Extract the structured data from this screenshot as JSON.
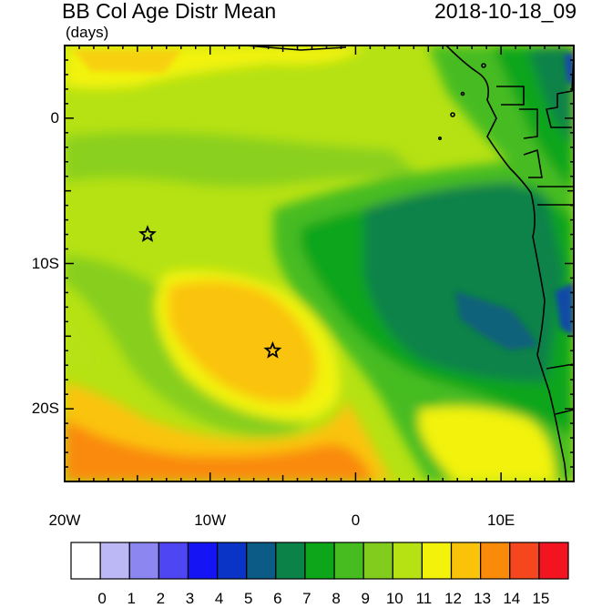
{
  "header": {
    "title": "BB Col Age Distr Mean",
    "units": "(days)",
    "timestamp": "2018-10-18_09"
  },
  "axes": {
    "lat_ticks": [
      {
        "value": 0,
        "label": "0"
      },
      {
        "value": -10,
        "label": "10S"
      },
      {
        "value": -20,
        "label": "20S"
      }
    ],
    "lon_ticks": [
      {
        "value": -20,
        "label": "20W"
      },
      {
        "value": -10,
        "label": "10W"
      },
      {
        "value": 0,
        "label": "0"
      },
      {
        "value": 10,
        "label": "10E"
      }
    ],
    "lon_range": [
      -20,
      15
    ],
    "lat_range": [
      -25,
      5
    ]
  },
  "colorbar": {
    "labels": [
      "0",
      "1",
      "2",
      "3",
      "4",
      "5",
      "6",
      "7",
      "8",
      "9",
      "10",
      "11",
      "12",
      "13",
      "14",
      "15"
    ],
    "colors": [
      "#ffffff",
      "#bcb8f5",
      "#8c86f0",
      "#4e46f2",
      "#1414f5",
      "#0a34c6",
      "#0c5a86",
      "#0a8248",
      "#0da51a",
      "#46bc20",
      "#82cc1e",
      "#b6e214",
      "#f2f20a",
      "#fac30a",
      "#fa8a0a",
      "#f5461e",
      "#f2141e"
    ]
  },
  "markers": [
    {
      "name": "star-1",
      "lon": -14.3,
      "lat": -8.0
    },
    {
      "name": "star-2",
      "lon": -5.7,
      "lat": -16.0
    }
  ]
}
